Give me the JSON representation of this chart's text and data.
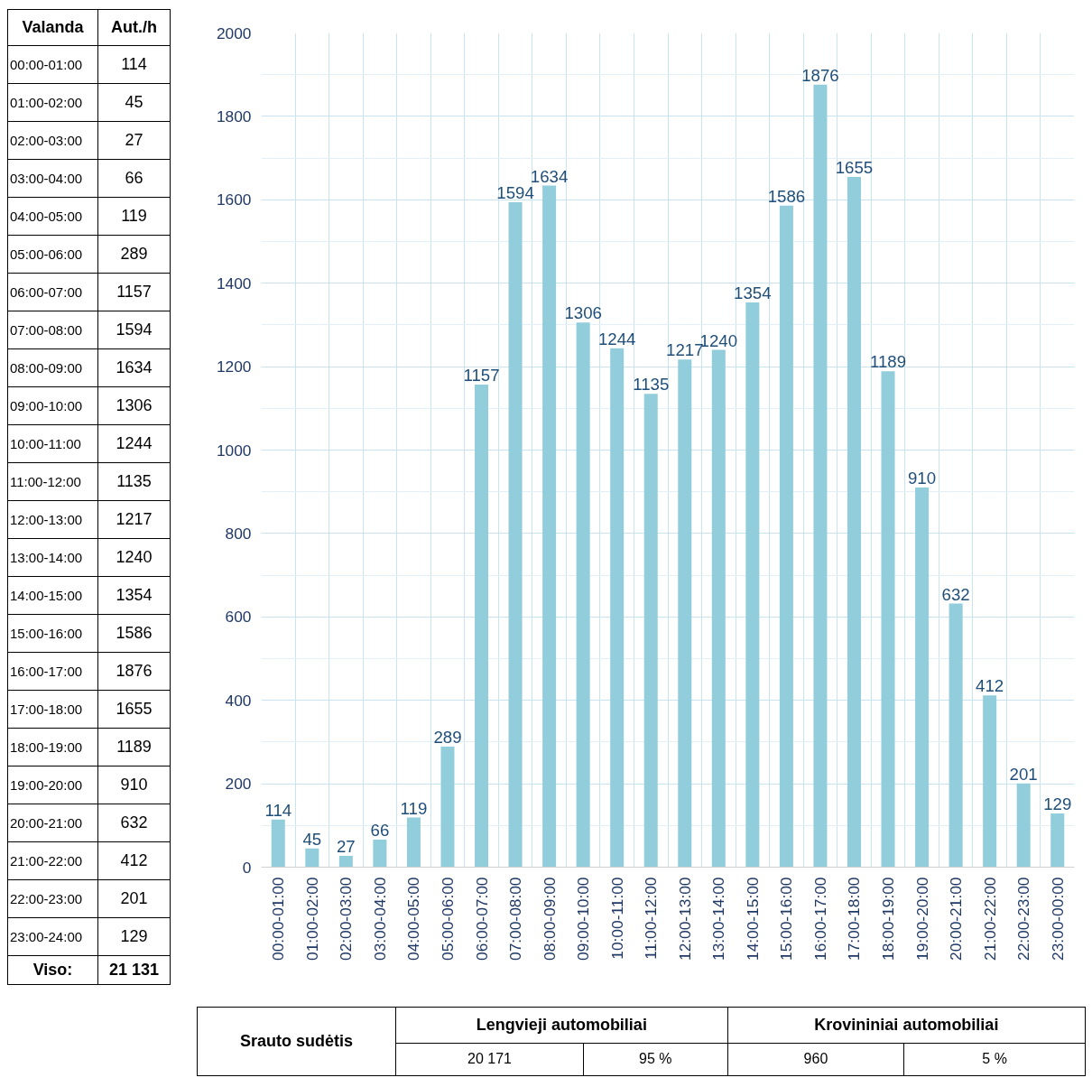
{
  "chart_data": {
    "type": "bar",
    "categories": [
      "00:00-01:00",
      "01:00-02:00",
      "02:00-03:00",
      "03:00-04:00",
      "04:00-05:00",
      "05:00-06:00",
      "06:00-07:00",
      "07:00-08:00",
      "08:00-09:00",
      "09:00-10:00",
      "10:00-11:00",
      "11:00-12:00",
      "12:00-13:00",
      "13:00-14:00",
      "14:00-15:00",
      "15:00-16:00",
      "16:00-17:00",
      "17:00-18:00",
      "18:00-19:00",
      "19:00-20:00",
      "20:00-21:00",
      "21:00-22:00",
      "22:00-23:00",
      "23:00-00:00"
    ],
    "values": [
      114,
      45,
      27,
      66,
      119,
      289,
      1157,
      1594,
      1634,
      1306,
      1244,
      1135,
      1217,
      1240,
      1354,
      1586,
      1876,
      1655,
      1189,
      910,
      632,
      412,
      201,
      129
    ],
    "color": "#92cddc",
    "ylim": [
      0,
      2000
    ],
    "yticks": [
      0,
      200,
      400,
      600,
      800,
      1000,
      1200,
      1400,
      1600,
      1800,
      2000
    ],
    "grid": true,
    "data_labels": true,
    "annotations": [
      "Valanda",
      "Aut./h",
      "00:00-01:00",
      "114",
      "01:00-02:00",
      "45",
      "02:00-03:00",
      "27",
      "03:00-04:00",
      "66",
      "04:00-05:00",
      "119",
      "05:00-06:00",
      "289",
      "06:00-07:00",
      "1157",
      "07:00-08:00",
      "1594",
      "08:00-09:00",
      "1634",
      "09:00-10:00",
      "1306",
      "10:00-11:00",
      "1244",
      "11:00-12:00",
      "1135",
      "12:00-13:00",
      "1217",
      "13:00-14:00",
      "1240",
      "14:00-15:00",
      "1354",
      "15:00-16:00",
      "1586",
      "16:00-17:00",
      "1876",
      "17:00-18:00",
      "1655",
      "18:00-19:00",
      "1189",
      "19:00-20:00",
      "910",
      "20:00-21:00",
      "632",
      "21:00-22:00",
      "412",
      "22:00-23:00",
      "201",
      "23:00-24:00",
      "129",
      "Viso:",
      "21 131",
      "Srauto sudėtis",
      "Lengvieji automobiliai",
      "20 171",
      "95 %",
      "Krovininiai automobiliai",
      "960",
      "5 %"
    ]
  }
}
